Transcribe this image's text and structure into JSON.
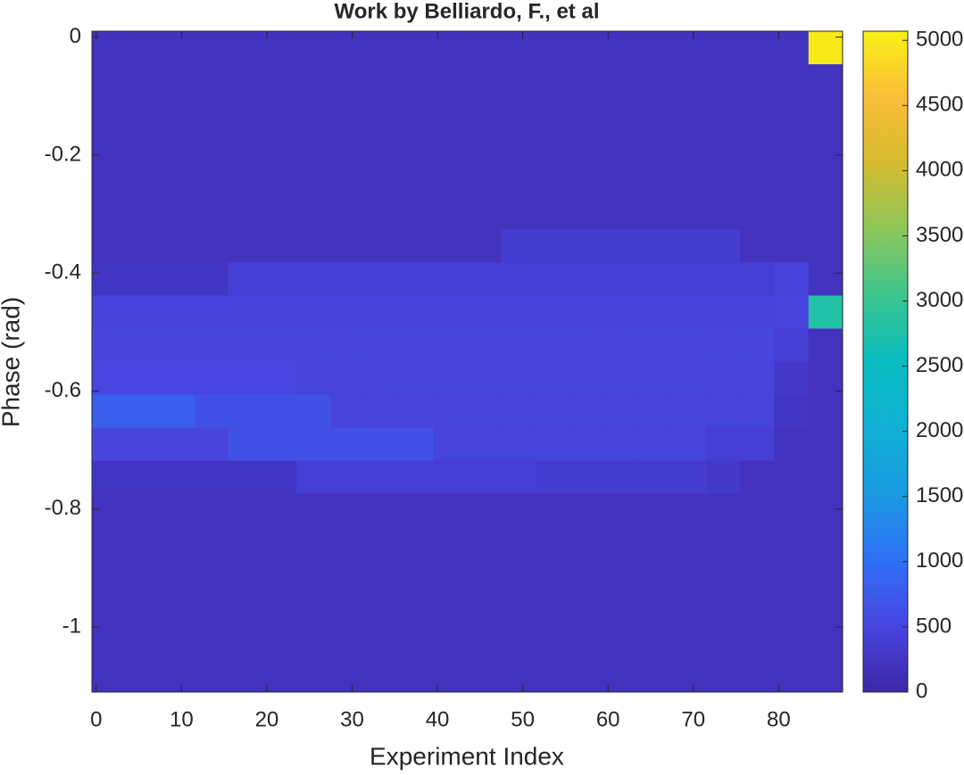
{
  "chart_data": {
    "type": "heatmap",
    "title": "Work by Belliardo, F., et al",
    "x_label": "Experiment Index",
    "y_label": "Phase (rad)",
    "xlim": [
      -0.5,
      87.5
    ],
    "ylim": [
      -1.11,
      0.01
    ],
    "xticks": [
      0,
      10,
      20,
      30,
      40,
      50,
      60,
      70,
      80
    ],
    "yticks": [
      0,
      -0.2,
      -0.4,
      -0.6,
      -0.8,
      -1
    ],
    "x_edges": [
      -0.5,
      3.5,
      7.5,
      11.5,
      15.5,
      19.5,
      23.5,
      27.5,
      31.5,
      35.5,
      39.5,
      43.5,
      47.5,
      51.5,
      55.5,
      59.5,
      63.5,
      67.5,
      71.5,
      75.5,
      79.5,
      83.5,
      87.5
    ],
    "y_edges": [
      0.01,
      -0.046,
      -0.102,
      -0.158,
      -0.214,
      -0.27,
      -0.326,
      -0.382,
      -0.438,
      -0.494,
      -0.55,
      -0.606,
      -0.662,
      -0.718,
      -0.774,
      -0.83,
      -0.886,
      -0.942,
      -0.998,
      -1.054,
      -1.11
    ],
    "values": [
      [
        200,
        200,
        200,
        200,
        200,
        200,
        200,
        200,
        200,
        200,
        200,
        200,
        200,
        200,
        200,
        200,
        200,
        200,
        200,
        200,
        200,
        5000
      ],
      [
        200,
        200,
        200,
        200,
        200,
        200,
        200,
        200,
        200,
        200,
        200,
        200,
        200,
        200,
        200,
        200,
        200,
        200,
        200,
        200,
        200,
        200
      ],
      [
        200,
        200,
        200,
        200,
        200,
        200,
        200,
        200,
        200,
        200,
        200,
        200,
        200,
        200,
        200,
        200,
        200,
        200,
        200,
        200,
        200,
        200
      ],
      [
        200,
        200,
        200,
        200,
        200,
        200,
        200,
        200,
        200,
        200,
        200,
        200,
        200,
        200,
        200,
        200,
        200,
        200,
        200,
        200,
        200,
        200
      ],
      [
        200,
        200,
        200,
        200,
        200,
        200,
        200,
        200,
        200,
        200,
        200,
        200,
        200,
        200,
        200,
        200,
        200,
        200,
        200,
        200,
        200,
        200
      ],
      [
        200,
        200,
        200,
        200,
        200,
        200,
        200,
        200,
        200,
        200,
        200,
        200,
        200,
        200,
        200,
        200,
        200,
        200,
        200,
        200,
        200,
        200
      ],
      [
        200,
        200,
        200,
        200,
        200,
        200,
        200,
        200,
        200,
        200,
        200,
        200,
        350,
        350,
        350,
        350,
        350,
        350,
        350,
        200,
        200,
        200
      ],
      [
        250,
        250,
        250,
        250,
        400,
        400,
        400,
        400,
        400,
        400,
        400,
        400,
        400,
        400,
        400,
        400,
        400,
        400,
        400,
        400,
        450,
        200
      ],
      [
        450,
        450,
        450,
        450,
        450,
        450,
        450,
        450,
        450,
        450,
        450,
        450,
        450,
        450,
        450,
        450,
        450,
        450,
        450,
        450,
        500,
        2800
      ],
      [
        500,
        500,
        500,
        500,
        500,
        500,
        500,
        500,
        500,
        500,
        500,
        500,
        500,
        500,
        500,
        500,
        500,
        500,
        500,
        500,
        400,
        200
      ],
      [
        520,
        520,
        520,
        520,
        520,
        520,
        480,
        480,
        480,
        480,
        480,
        480,
        480,
        480,
        480,
        480,
        480,
        480,
        480,
        480,
        300,
        200
      ],
      [
        800,
        800,
        800,
        650,
        650,
        650,
        650,
        480,
        480,
        480,
        480,
        480,
        480,
        480,
        480,
        480,
        480,
        480,
        480,
        480,
        250,
        200
      ],
      [
        500,
        500,
        500,
        500,
        650,
        650,
        650,
        650,
        650,
        650,
        480,
        480,
        480,
        480,
        480,
        480,
        480,
        480,
        400,
        400,
        200,
        200
      ],
      [
        250,
        250,
        250,
        250,
        250,
        250,
        400,
        400,
        400,
        400,
        400,
        400,
        400,
        350,
        350,
        350,
        350,
        350,
        300,
        200,
        200,
        200
      ],
      [
        200,
        200,
        200,
        200,
        200,
        200,
        200,
        200,
        200,
        200,
        200,
        200,
        200,
        200,
        200,
        200,
        200,
        200,
        200,
        200,
        200,
        200
      ],
      [
        200,
        200,
        200,
        200,
        200,
        200,
        200,
        200,
        200,
        200,
        200,
        200,
        200,
        200,
        200,
        200,
        200,
        200,
        200,
        200,
        200,
        200
      ],
      [
        200,
        200,
        200,
        200,
        200,
        200,
        200,
        200,
        200,
        200,
        200,
        200,
        200,
        200,
        200,
        200,
        200,
        200,
        200,
        200,
        200,
        200
      ],
      [
        200,
        200,
        200,
        200,
        200,
        200,
        200,
        200,
        200,
        200,
        200,
        200,
        200,
        200,
        200,
        200,
        200,
        200,
        200,
        200,
        200,
        200
      ],
      [
        200,
        200,
        200,
        200,
        200,
        200,
        200,
        200,
        200,
        200,
        200,
        200,
        200,
        200,
        200,
        200,
        200,
        200,
        200,
        200,
        200,
        200
      ],
      [
        200,
        200,
        200,
        200,
        200,
        200,
        200,
        200,
        200,
        200,
        200,
        200,
        200,
        200,
        200,
        200,
        200,
        200,
        200,
        200,
        200,
        200
      ]
    ],
    "clim": [
      0,
      5070
    ],
    "cticks": [
      0,
      500,
      1000,
      1500,
      2000,
      2500,
      3000,
      3500,
      4000,
      4500,
      5000
    ],
    "colormap": [
      "#3e26a8",
      "#4845e0",
      "#2f70f5",
      "#1a9ae0",
      "#10b0d5",
      "#08bcc0",
      "#3bc58e",
      "#8dc75a",
      "#d4bb2f",
      "#fbbd3a",
      "#f8f114"
    ]
  }
}
